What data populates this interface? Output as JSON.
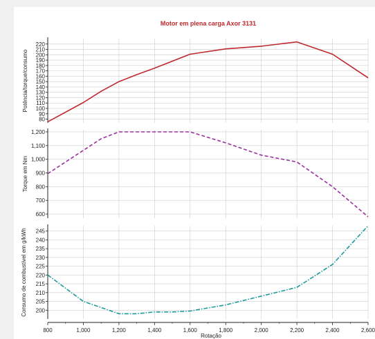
{
  "chart_data": {
    "type": "line",
    "title": "Motor em plena carga Axor 3131",
    "xlabel": "Rotação",
    "x_ticks": [
      "800",
      "1,000",
      "1,200",
      "1,400",
      "1,600",
      "1,800",
      "2,000",
      "2,200",
      "2,400",
      "2,600"
    ],
    "xlim": [
      800,
      2600
    ],
    "grid": true,
    "colors": {
      "title": "#c0282d",
      "power": "#c0282d",
      "torque": "#9b2f9e",
      "consumption": "#1a9a9a",
      "grid": "#cccccc"
    },
    "panels": [
      {
        "id": "power",
        "ylabel": "Potência/torque/consumo",
        "ylim": [
          73,
          230
        ],
        "yticks": [
          "80",
          "90",
          "100",
          "110",
          "120",
          "130",
          "140",
          "150",
          "160",
          "170",
          "180",
          "190",
          "200",
          "210",
          "220"
        ],
        "ytick_values": [
          80,
          90,
          100,
          110,
          120,
          130,
          140,
          150,
          160,
          170,
          180,
          190,
          200,
          210,
          220
        ],
        "series": [
          {
            "style": "solid",
            "x": [
              800,
              1000,
              1100,
              1200,
              1300,
              1400,
              1600,
              1800,
              2000,
              2200,
              2400,
              2600
            ],
            "y": [
              75,
              111,
              132,
              150,
              163,
              175,
              201,
              211,
              216,
              224,
              201,
              157
            ]
          }
        ]
      },
      {
        "id": "torque",
        "ylabel": "Torque em Nm",
        "ylim": [
          570,
          1215
        ],
        "yticks": [
          "600",
          "700",
          "800",
          "900",
          "1,000",
          "1,100",
          "1,200"
        ],
        "ytick_values": [
          600,
          700,
          800,
          900,
          1000,
          1100,
          1200
        ],
        "series": [
          {
            "style": "dashed",
            "x": [
              800,
              1000,
              1100,
              1200,
              1400,
              1600,
              1800,
              2000,
              2200,
              2400,
              2600
            ],
            "y": [
              895,
              1065,
              1150,
              1200,
              1200,
              1200,
              1120,
              1030,
              980,
              800,
              580
            ]
          }
        ]
      },
      {
        "id": "consumption",
        "ylabel": "Consumo de combustível em g/kWh",
        "ylim": [
          195,
          248
        ],
        "yticks": [
          "200",
          "205",
          "210",
          "215",
          "220",
          "225",
          "230",
          "235",
          "240",
          "245"
        ],
        "ytick_values": [
          200,
          205,
          210,
          215,
          220,
          225,
          230,
          235,
          240,
          245
        ],
        "series": [
          {
            "style": "dashdot",
            "x": [
              800,
              1000,
              1200,
              1300,
              1400,
              1500,
              1600,
              1800,
              2000,
              2200,
              2400,
              2600
            ],
            "y": [
              220,
              205,
              198,
              198,
              199,
              199,
              199.5,
              203,
              208,
              213,
              226,
              248
            ]
          }
        ]
      }
    ]
  }
}
